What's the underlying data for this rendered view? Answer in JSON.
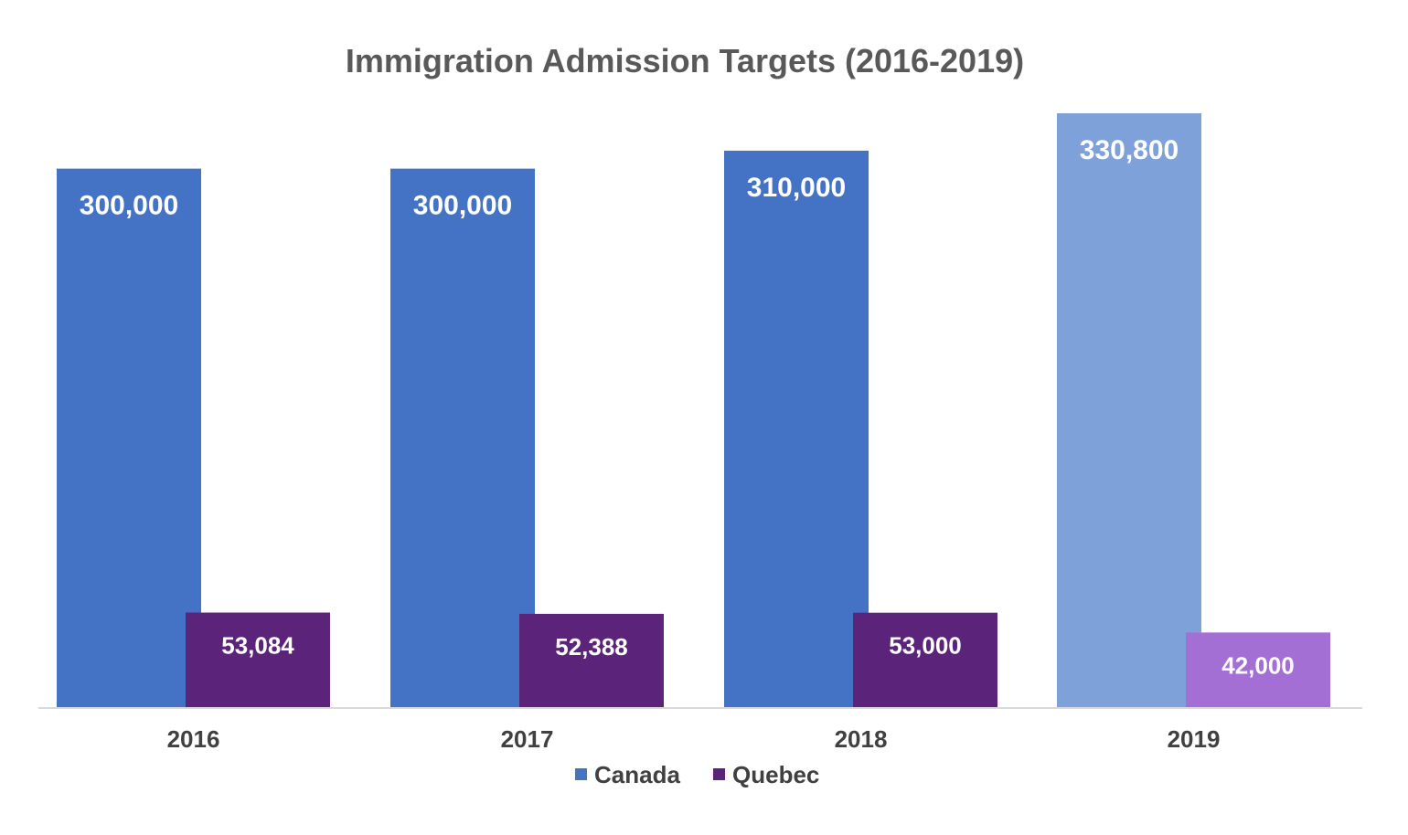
{
  "chart_data": {
    "type": "bar",
    "title": "Immigration Admission Targets (2016-2019)",
    "xlabel": "",
    "ylabel": "",
    "categories": [
      "2016",
      "2017",
      "2018",
      "2019"
    ],
    "series": [
      {
        "name": "Canada",
        "values": [
          300000,
          300000,
          310000,
          330800
        ],
        "labels": [
          "300,000",
          "300,000",
          "310,000",
          "330,800"
        ],
        "color": "#4472C4",
        "colors": [
          "#4472C4",
          "#4472C4",
          "#4472C4",
          "#7FA1DA"
        ]
      },
      {
        "name": "Quebec",
        "values": [
          53084,
          52388,
          53000,
          42000
        ],
        "labels": [
          "53,084",
          "52,388",
          "53,000",
          "42,000"
        ],
        "color": "#5B247A",
        "colors": [
          "#5B247A",
          "#5B247A",
          "#5B247A",
          "#A46FD4"
        ]
      }
    ],
    "ylim": [
      0,
      330800
    ],
    "grid": false,
    "legend": "bottom"
  }
}
